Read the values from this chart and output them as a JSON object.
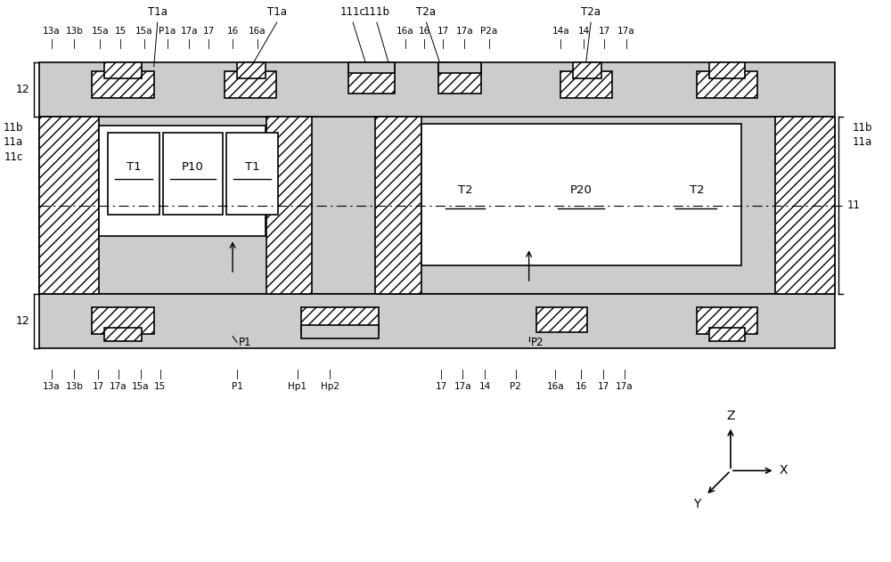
{
  "bg_color": "#ffffff",
  "line_color": "#000000",
  "dot_fill": "#cccccc",
  "fig_width": 10.0,
  "fig_height": 6.31,
  "top_row1": [
    [
      "T1a",
      172,
      18
    ],
    [
      "T1a",
      305,
      18
    ],
    [
      "111c",
      393,
      18
    ],
    [
      "111b",
      418,
      18
    ],
    [
      "T2a",
      476,
      18
    ],
    [
      "T2a",
      662,
      18
    ]
  ],
  "top_row2": [
    [
      "13a",
      52,
      38
    ],
    [
      "13b",
      78,
      38
    ],
    [
      "15a",
      107,
      38
    ],
    [
      "15",
      130,
      38
    ],
    [
      "15a",
      157,
      38
    ],
    [
      "P1a",
      183,
      38
    ],
    [
      "17a",
      208,
      38
    ],
    [
      "17",
      230,
      38
    ],
    [
      "16",
      257,
      38
    ],
    [
      "16a",
      285,
      38
    ],
    [
      "16a",
      452,
      38
    ],
    [
      "16",
      474,
      38
    ],
    [
      "17",
      495,
      38
    ],
    [
      "17a",
      519,
      38
    ],
    [
      "P2a",
      547,
      38
    ],
    [
      "14a",
      628,
      38
    ],
    [
      "14",
      654,
      38
    ],
    [
      "17",
      677,
      38
    ],
    [
      "17a",
      702,
      38
    ]
  ],
  "bot_row": [
    [
      "13a",
      52,
      430
    ],
    [
      "13b",
      78,
      430
    ],
    [
      "17",
      105,
      430
    ],
    [
      "17a",
      128,
      430
    ],
    [
      "15a",
      153,
      430
    ],
    [
      "15",
      175,
      430
    ],
    [
      "P1",
      262,
      430
    ],
    [
      "Hp1",
      330,
      430
    ],
    [
      "Hp2",
      367,
      430
    ],
    [
      "17",
      493,
      430
    ],
    [
      "17a",
      517,
      430
    ],
    [
      "14",
      542,
      430
    ],
    [
      "P2",
      577,
      430
    ],
    [
      "16a",
      622,
      430
    ],
    [
      "16",
      651,
      430
    ],
    [
      "17",
      676,
      430
    ],
    [
      "17a",
      700,
      430
    ]
  ]
}
